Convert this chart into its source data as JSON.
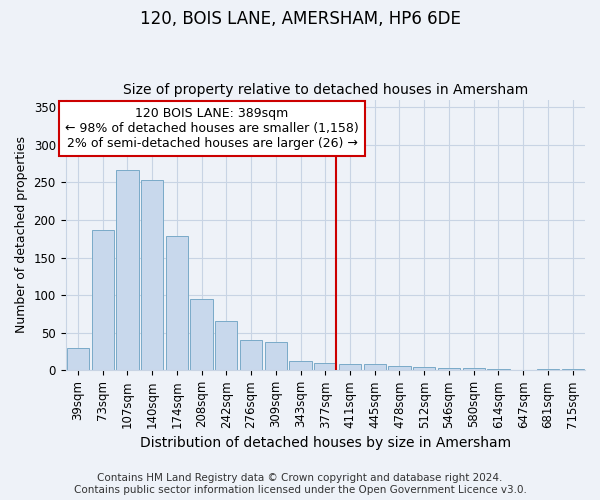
{
  "title": "120, BOIS LANE, AMERSHAM, HP6 6DE",
  "subtitle": "Size of property relative to detached houses in Amersham",
  "xlabel": "Distribution of detached houses by size in Amersham",
  "ylabel": "Number of detached properties",
  "footer_line1": "Contains HM Land Registry data © Crown copyright and database right 2024.",
  "footer_line2": "Contains public sector information licensed under the Open Government Licence v3.0.",
  "categories": [
    "39sqm",
    "73sqm",
    "107sqm",
    "140sqm",
    "174sqm",
    "208sqm",
    "242sqm",
    "276sqm",
    "309sqm",
    "343sqm",
    "377sqm",
    "411sqm",
    "445sqm",
    "478sqm",
    "512sqm",
    "546sqm",
    "580sqm",
    "614sqm",
    "647sqm",
    "681sqm",
    "715sqm"
  ],
  "values": [
    30,
    187,
    267,
    253,
    178,
    95,
    65,
    40,
    38,
    12,
    10,
    9,
    8,
    6,
    5,
    3,
    3,
    2,
    0,
    2,
    2
  ],
  "bar_color": "#c8d8ec",
  "bar_edge_color": "#7aaac8",
  "grid_color": "#c8d4e4",
  "background_color": "#eef2f8",
  "vline_x_index": 10,
  "vline_color": "#cc0000",
  "annotation_line1": "120 BOIS LANE: 389sqm",
  "annotation_line2": "← 98% of detached houses are smaller (1,158)",
  "annotation_line3": "2% of semi-detached houses are larger (26) →",
  "annotation_box_color": "#ffffff",
  "annotation_box_edge_color": "#cc0000",
  "ylim": [
    0,
    360
  ],
  "yticks": [
    0,
    50,
    100,
    150,
    200,
    250,
    300,
    350
  ],
  "title_fontsize": 12,
  "subtitle_fontsize": 10,
  "xlabel_fontsize": 10,
  "ylabel_fontsize": 9,
  "annotation_fontsize": 9,
  "tick_fontsize": 8.5,
  "footer_fontsize": 7.5
}
